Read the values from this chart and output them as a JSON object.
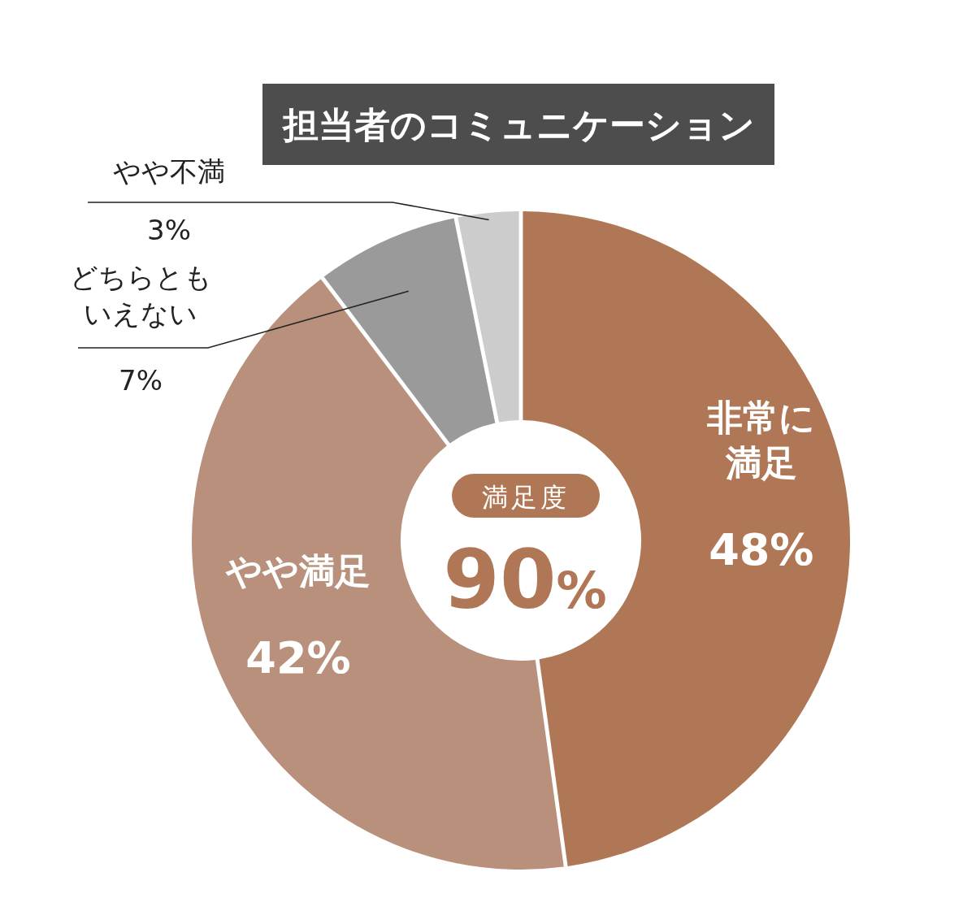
{
  "chart_data": {
    "type": "donut",
    "title": "担当者のコミュニケーション",
    "categories": [
      "非常に満足",
      "やや満足",
      "どちらともいえない",
      "やや不満"
    ],
    "values": [
      48,
      42,
      7,
      3
    ],
    "colors": [
      "#b07756",
      "#b8907b",
      "#9a9a9a",
      "#cccccc"
    ],
    "value_labels": [
      "48%",
      "42%",
      "7%",
      "3%"
    ],
    "annotations": [
      "満足度",
      "90%"
    ]
  }
}
